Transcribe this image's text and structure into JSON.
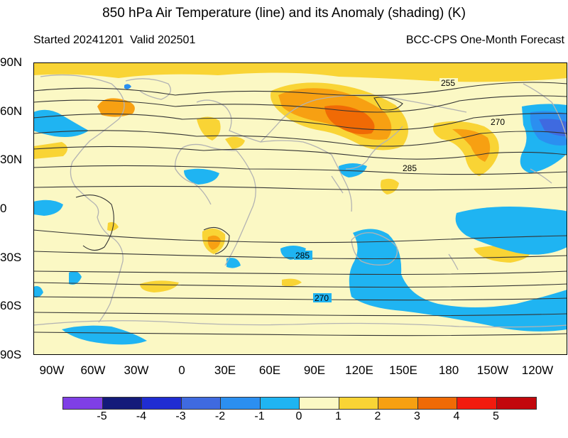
{
  "header": {
    "title": "850 hPa Air Temperature (line) and its Anomaly (shading) (K)",
    "started": "Started 20241201",
    "valid": "Valid 202501",
    "product": "BCC-CPS One-Month Forecast"
  },
  "map": {
    "lat_labels": [
      "90N",
      "60N",
      "30N",
      "0",
      "30S",
      "60S",
      "90S"
    ],
    "lon_labels": [
      "90W",
      "60W",
      "30W",
      "0",
      "30E",
      "60E",
      "90E",
      "120E",
      "150E",
      "180",
      "150W",
      "120W"
    ],
    "contour_labels": [
      {
        "text": "255"
      },
      {
        "text": "270"
      },
      {
        "text": "285"
      },
      {
        "text": "285"
      },
      {
        "text": "270"
      }
    ],
    "background_color": "#fbf8c4",
    "land_outline_color": "#b3b3b3",
    "contour_color": "#333333"
  },
  "colorbar": {
    "labels": [
      "-5",
      "-4",
      "-3",
      "-2",
      "-1",
      "0",
      "1",
      "2",
      "3",
      "4",
      "5"
    ],
    "colors": [
      "#7f3fe6",
      "#141a7a",
      "#1f2dd2",
      "#3f6ae0",
      "#2b8ff0",
      "#1fb4f2",
      "#fbf8c4",
      "#f9d435",
      "#f7a012",
      "#f06a05",
      "#f21b0e",
      "#c2070c"
    ]
  }
}
